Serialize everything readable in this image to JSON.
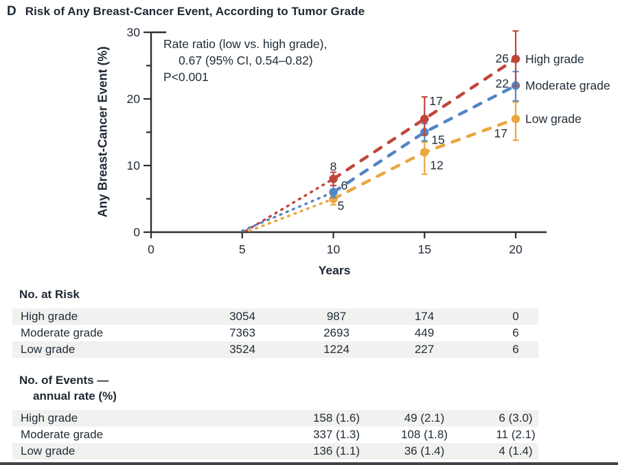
{
  "panel": {
    "letter": "D",
    "title": "Risk of Any Breast-Cancer Event, According to Tumor Grade"
  },
  "chart_data": {
    "type": "line",
    "xlabel": "Years",
    "ylabel": "Any Breast-Cancer Event (%)",
    "xlim": [
      0,
      20
    ],
    "ylim": [
      0,
      30
    ],
    "xticks": [
      0,
      5,
      10,
      15,
      20
    ],
    "yticks_major": [
      0,
      10,
      20,
      30
    ],
    "yticks_minor": [
      5,
      15,
      25
    ],
    "grid": false,
    "legend_position": "right-of-last-point",
    "annotation": {
      "line1": "Rate ratio (low vs. high grade),",
      "line2": "0.67 (95% CI, 0.54–0.82)",
      "line3": "P<0.001"
    },
    "line_style_note": "dotted from year ~5 at 0%, dashed from year 10 onward, points with CI error bars",
    "series": [
      {
        "name": "Low grade",
        "color": "#eba63e",
        "x": [
          10,
          15,
          20
        ],
        "y": [
          5,
          12,
          17
        ],
        "point_labels": [
          "5",
          "12",
          "17"
        ],
        "ci_low": [
          4.1,
          8.7,
          13.8
        ],
        "ci_high": [
          5.9,
          13.5,
          19.5
        ],
        "dotted_origin": [
          5.4,
          0.2
        ]
      },
      {
        "name": "Moderate grade",
        "color": "#4f86c6",
        "x": [
          10,
          15,
          20
        ],
        "y": [
          6,
          15,
          22
        ],
        "point_labels": [
          "6",
          "15",
          "22"
        ],
        "ci_low": [
          5.2,
          13.7,
          19.7
        ],
        "ci_high": [
          7.0,
          16.3,
          24.1
        ],
        "dotted_origin": [
          5.0,
          0.2
        ]
      },
      {
        "name": "High grade",
        "color": "#c0453a",
        "x": [
          10,
          15,
          20
        ],
        "y": [
          8,
          17,
          26
        ],
        "point_labels": [
          "8",
          "17",
          "26"
        ],
        "ci_low": [
          7.0,
          14.6,
          21.9
        ],
        "ci_high": [
          9.0,
          20.3,
          30.2
        ],
        "dotted_origin": [
          5.2,
          0.2
        ]
      }
    ]
  },
  "risk_table": {
    "header": "No. at Risk",
    "rows": [
      {
        "label": "High grade",
        "values": [
          "3054",
          "987",
          "174",
          "0"
        ]
      },
      {
        "label": "Moderate grade",
        "values": [
          "7363",
          "2693",
          "449",
          "6"
        ]
      },
      {
        "label": "Low grade",
        "values": [
          "3524",
          "1224",
          "227",
          "6"
        ]
      }
    ]
  },
  "events_table": {
    "header_line1": "No. of Events —",
    "header_line2": "annual rate (%)",
    "rows": [
      {
        "label": "High grade",
        "values": [
          "158 (1.6)",
          "49 (2.1)",
          "6 (3.0)"
        ]
      },
      {
        "label": "Moderate grade",
        "values": [
          "337 (1.3)",
          "108 (1.8)",
          "11 (2.1)"
        ]
      },
      {
        "label": "Low grade",
        "values": [
          "136 (1.1)",
          "36 (1.4)",
          "4 (1.4)"
        ]
      }
    ]
  },
  "colors": {
    "high_grade": "#c0453a",
    "moderate_grade": "#4f86c6",
    "low_grade": "#eba63e",
    "text": "#222d38",
    "axis": "#2a2e33",
    "row_shade": "#f1f1ef",
    "bottom_bar": "#3e4347"
  }
}
